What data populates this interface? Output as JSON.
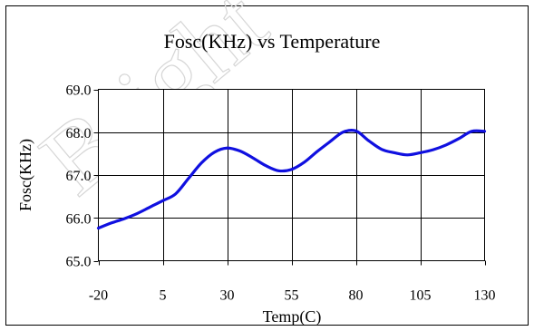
{
  "chart_data": {
    "type": "line",
    "title": "Fosc(KHz) vs Temperature",
    "xlabel": "Temp(C)",
    "ylabel": "Fosc(KHz)",
    "x_ticks": [
      -20,
      5,
      30,
      55,
      80,
      105,
      130
    ],
    "y_ticks": [
      "65.0",
      "66.0",
      "67.0",
      "68.0",
      "69.0"
    ],
    "xlim": [
      -20,
      130
    ],
    "ylim": [
      65,
      69
    ],
    "grid": {
      "vertical": true,
      "horizontal": true
    },
    "line_color": "#1010e0",
    "series": [
      {
        "x": [
          -20,
          -15,
          -10,
          -5,
          0,
          5,
          10,
          15,
          20,
          25,
          30,
          35,
          40,
          45,
          50,
          55,
          60,
          65,
          70,
          75,
          80,
          85,
          90,
          95,
          100,
          105,
          110,
          115,
          120,
          125,
          130
        ],
        "values": [
          65.76,
          65.88,
          65.98,
          66.1,
          66.25,
          66.4,
          66.56,
          66.92,
          67.28,
          67.53,
          67.63,
          67.56,
          67.4,
          67.22,
          67.1,
          67.13,
          67.3,
          67.55,
          67.78,
          68.0,
          68.03,
          67.8,
          67.6,
          67.52,
          67.47,
          67.52,
          67.59,
          67.7,
          67.85,
          68.02,
          68.02
        ]
      }
    ]
  },
  "watermark": "Bright"
}
